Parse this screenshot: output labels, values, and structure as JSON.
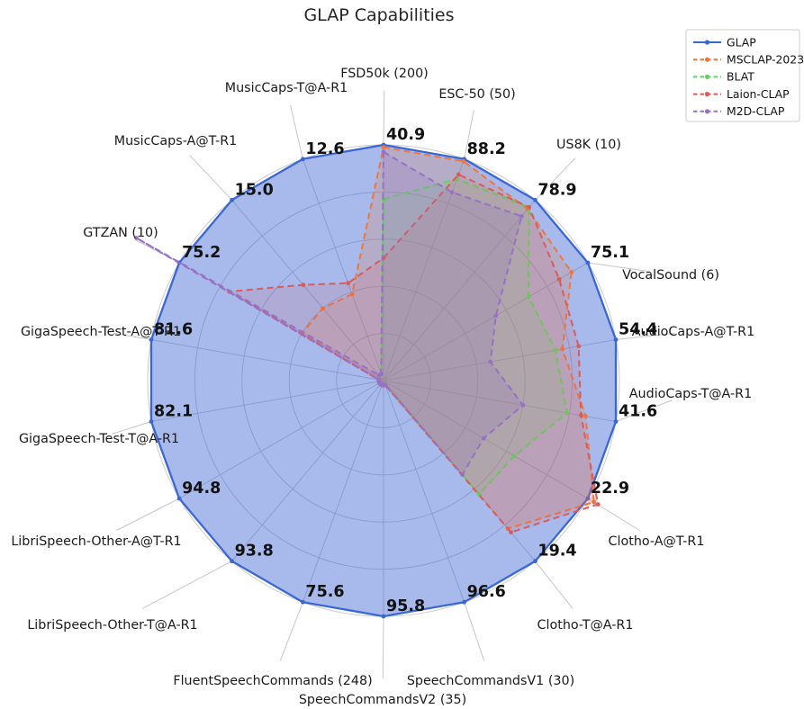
{
  "title": "GLAP Capabilities",
  "legend": {
    "position": "top-right",
    "items": [
      "GLAP",
      "MSCLAP-2023",
      "BLAT",
      "Laion-CLAP",
      "M2D-CLAP"
    ]
  },
  "chart_data": {
    "type": "radar",
    "title": "GLAP Capabilities",
    "grid": true,
    "ring_levels": [
      0.2,
      0.4,
      0.6,
      0.8,
      1.0
    ],
    "normalization": "Each axis is scaled so that GLAP's labeled score sits on the outer ring (=1.0). Baseline series values are estimated from the plot; series may exceed 1.0 where they beat GLAP.",
    "axes": [
      "FSD50k (200)",
      "ESC-50 (50)",
      "US8K (10)",
      "VocalSound (6)",
      "AudioCaps-A@T-R1",
      "AudioCaps-T@A-R1",
      "Clotho-A@T-R1",
      "Clotho-T@A-R1",
      "SpeechCommandsV1 (30)",
      "SpeechCommandsV2 (35)",
      "FluentSpeechCommands (248)",
      "LibriSpeech-Other-T@A-R1",
      "LibriSpeech-Other-A@T-R1",
      "GigaSpeech-Test-T@A-R1",
      "GigaSpeech-Test-A@T-R1",
      "GTZAN (10)",
      "MusicCaps-A@T-R1",
      "MusicCaps-T@A-R1"
    ],
    "vertex_value_labels": [
      "40.9",
      "88.2",
      "78.9",
      "75.1",
      "54.4",
      "41.6",
      "22.9",
      "19.4",
      "96.6",
      "95.8",
      "75.6",
      "93.8",
      "94.8",
      "82.1",
      "81.6",
      "75.2",
      "15.0",
      "12.6"
    ],
    "series": [
      {
        "name": "GLAP",
        "color": "#3b67d3",
        "line_style": "solid",
        "fill_opacity": 0.45,
        "values": [
          40.9,
          88.2,
          78.9,
          75.1,
          54.4,
          41.6,
          22.9,
          19.4,
          96.6,
          95.8,
          75.6,
          93.8,
          94.8,
          82.1,
          81.6,
          75.2,
          15.0,
          12.6
        ],
        "normalized_values": [
          1.0,
          1.0,
          1.0,
          1.0,
          1.0,
          1.0,
          1.0,
          1.0,
          1.0,
          1.0,
          1.0,
          1.0,
          1.0,
          1.0,
          1.0,
          1.0,
          1.0,
          1.0
        ]
      },
      {
        "name": "MSCLAP-2023",
        "color": "#f0763e",
        "line_style": "dashed",
        "fill_opacity": 0.2,
        "normalized_values": [
          0.99,
          0.99,
          0.95,
          0.92,
          0.77,
          0.87,
          1.03,
          0.82,
          0.02,
          0.02,
          0.02,
          0.02,
          0.02,
          0.02,
          0.02,
          0.4,
          0.4,
          0.39
        ],
        "estimated_values": [
          40.5,
          87.3,
          75.0,
          69.1,
          41.9,
          36.2,
          23.6,
          15.9,
          1.9,
          1.9,
          1.5,
          1.9,
          1.9,
          1.6,
          1.6,
          30.1,
          6.0,
          4.9
        ]
      },
      {
        "name": "BLAT",
        "color": "#5ed55e",
        "line_style": "dashed",
        "fill_opacity": 0.15,
        "normalized_values": [
          0.77,
          0.91,
          0.96,
          0.71,
          0.74,
          0.79,
          0.64,
          0.63,
          0.02,
          0.02,
          0.02,
          0.02,
          0.02,
          0.02,
          0.02,
          0.02,
          0.03,
          0.03
        ],
        "estimated_values": [
          31.5,
          80.3,
          75.7,
          53.3,
          40.3,
          32.9,
          14.7,
          12.2,
          1.9,
          1.9,
          1.5,
          1.9,
          1.9,
          1.6,
          1.6,
          1.5,
          0.5,
          0.4
        ]
      },
      {
        "name": "Laion-CLAP",
        "color": "#d95c5c",
        "line_style": "dashed",
        "fill_opacity": 0.15,
        "normalized_values": [
          0.52,
          0.93,
          0.96,
          0.86,
          0.84,
          0.85,
          1.05,
          0.84,
          0.02,
          0.02,
          0.02,
          0.02,
          0.02,
          0.02,
          0.02,
          0.755,
          0.53,
          0.44
        ],
        "estimated_values": [
          21.3,
          82.0,
          75.7,
          64.6,
          45.7,
          35.4,
          24.0,
          16.3,
          1.9,
          1.9,
          1.5,
          1.9,
          1.9,
          1.6,
          1.6,
          56.8,
          8.0,
          5.5
        ]
      },
      {
        "name": "M2D-CLAP",
        "color": "#9870c5",
        "line_style": "dashed",
        "fill_opacity": 0.2,
        "normalized_values": [
          0.97,
          0.85,
          0.91,
          0.55,
          0.46,
          0.6,
          0.49,
          0.52,
          0.02,
          0.02,
          0.02,
          0.02,
          0.02,
          0.02,
          0.02,
          1.21,
          0.03,
          0.03
        ],
        "estimated_values": [
          39.7,
          75.0,
          71.8,
          41.3,
          25.0,
          25.0,
          11.2,
          10.1,
          1.9,
          1.9,
          1.5,
          1.9,
          1.9,
          1.6,
          1.6,
          91.0,
          0.5,
          0.4
        ]
      }
    ],
    "colors": {
      "grid": "#cbcbcb",
      "leader_line": "#c6c6c6",
      "legend_border": "#cccccc",
      "title_text": "#262626",
      "label_text": "#1a1a1a"
    }
  }
}
